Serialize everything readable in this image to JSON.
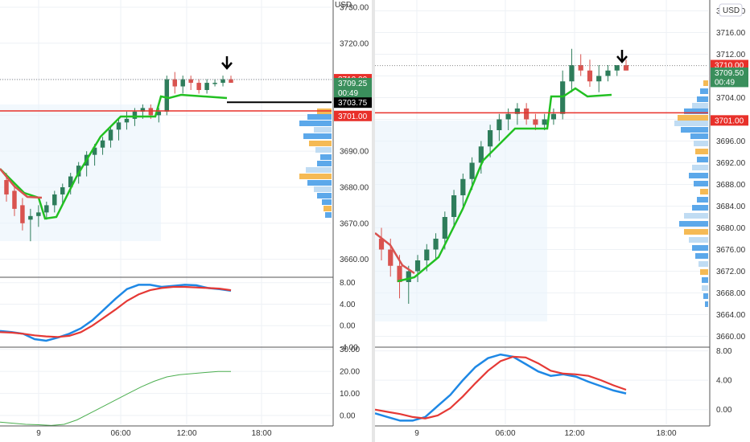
{
  "currency": "USD",
  "colors": {
    "up": "#2e7d5b",
    "down": "#d9534f",
    "trend": "#22c022",
    "mac_fast": "#1e88e5",
    "mac_slow": "#e53935",
    "osc": "#4caf50",
    "vp_blue": "#4a9ee8",
    "vp_lightblue": "#b9d8f2",
    "vp_orange": "#f4b342",
    "vp_cream": "#f7dfa0",
    "grid": "#eef1f5",
    "hl_red": "#e8302a",
    "hl_black": "#000000"
  },
  "chart_data": [
    {
      "panel": "left",
      "type": "candlestick",
      "x_labels": [
        "9",
        "06:00",
        "12:00",
        "18:00"
      ],
      "y_ticks": [
        "3730.00",
        "3720.00",
        "3710.00",
        "3700.00",
        "3690.00",
        "3680.00",
        "3670.00",
        "3660.00"
      ],
      "ylim": [
        3655,
        3732
      ],
      "price_badges": [
        {
          "text": "3710.00",
          "price": 3710.0,
          "style": "red"
        },
        {
          "text": "3709.25",
          "price": 3708.9,
          "style": "green"
        },
        {
          "text": "00:49",
          "price": 3706.2,
          "style": "green"
        },
        {
          "text": "3703.75",
          "price": 3703.5,
          "style": "black"
        },
        {
          "text": "3701.00",
          "price": 3699.8,
          "style": "red"
        }
      ],
      "candles": [
        [
          3682,
          3684,
          3676,
          3678
        ],
        [
          3679,
          3681,
          3672,
          3674
        ],
        [
          3675,
          3677,
          3668,
          3670
        ],
        [
          3671,
          3674,
          3665,
          3672
        ],
        [
          3672,
          3675,
          3669,
          3673
        ],
        [
          3673,
          3676,
          3671,
          3675
        ],
        [
          3675,
          3679,
          3673,
          3678
        ],
        [
          3678,
          3681,
          3675,
          3680
        ],
        [
          3680,
          3684,
          3678,
          3683
        ],
        [
          3683,
          3687,
          3681,
          3686
        ],
        [
          3686,
          3690,
          3683,
          3689
        ],
        [
          3689,
          3692,
          3686,
          3691
        ],
        [
          3691,
          3694,
          3689,
          3693
        ],
        [
          3693,
          3697,
          3691,
          3696
        ],
        [
          3696,
          3699,
          3693,
          3698
        ],
        [
          3698,
          3701,
          3696,
          3699
        ],
        [
          3699,
          3702,
          3697,
          3701
        ],
        [
          3701,
          3703,
          3699,
          3702
        ],
        [
          3702,
          3703,
          3699,
          3700
        ],
        [
          3700,
          3702,
          3698,
          3701
        ],
        [
          3701,
          3711,
          3700,
          3710
        ],
        [
          3710,
          3712,
          3706,
          3708
        ],
        [
          3708,
          3711,
          3706,
          3710
        ],
        [
          3710,
          3711,
          3707,
          3709
        ],
        [
          3709,
          3710,
          3706,
          3707
        ],
        [
          3707,
          3710,
          3706,
          3709
        ],
        [
          3709,
          3710,
          3708,
          3709
        ],
        [
          3709,
          3711,
          3708,
          3710
        ],
        [
          3710,
          3711,
          3709,
          3709
        ]
      ],
      "macd": {
        "ylim": [
          -4,
          9
        ],
        "y_ticks": [
          "8.00",
          "4.00",
          "0.00",
          "-4.00"
        ],
        "fast": [
          -1,
          -1.2,
          -1.5,
          -2.5,
          -2.8,
          -2.2,
          -1.5,
          -0.5,
          1,
          3,
          5,
          6.8,
          7.6,
          7.6,
          7.2,
          7.4,
          7.6,
          7.5,
          7.0,
          6.8,
          6.5
        ],
        "slow": [
          -1.2,
          -1.3,
          -1.5,
          -1.8,
          -2.0,
          -2.1,
          -1.9,
          -1.2,
          0,
          1.5,
          3,
          4.6,
          5.8,
          6.6,
          7.0,
          7.2,
          7.2,
          7.1,
          7.0,
          6.9,
          6.6
        ]
      },
      "oscillator": {
        "ylim": [
          -4,
          31
        ],
        "y_ticks": [
          "30.00",
          "20.00",
          "10.00",
          "0.00"
        ],
        "values": [
          -3,
          -3.5,
          -4,
          -4.2,
          -4.5,
          -4,
          -2,
          1,
          4,
          7,
          10,
          13,
          15.5,
          17.5,
          18.5,
          19,
          19.5,
          20,
          20
        ]
      }
    },
    {
      "panel": "right",
      "type": "candlestick",
      "x_labels": [
        "9",
        "06:00",
        "12:00",
        "18:00"
      ],
      "y_ticks": [
        "3720.00",
        "3716.00",
        "3712.00",
        "3708.00",
        "3704.00",
        "3700.00",
        "3696.00",
        "3692.00",
        "3688.00",
        "3684.00",
        "3680.00",
        "3676.00",
        "3672.00",
        "3668.00",
        "3664.00",
        "3660.00"
      ],
      "ylim": [
        3658,
        3722
      ],
      "price_badges": [
        {
          "text": "3710.00",
          "price": 3710.0,
          "style": "red"
        },
        {
          "text": "3709.50",
          "price": 3708.6,
          "style": "green"
        },
        {
          "text": "00:49",
          "price": 3706.9,
          "style": "green"
        },
        {
          "text": "3701.00",
          "price": 3699.8,
          "style": "red"
        }
      ],
      "candles": [
        [
          3678,
          3680,
          3674,
          3676
        ],
        [
          3676,
          3678,
          3671,
          3673
        ],
        [
          3673,
          3675,
          3667,
          3670
        ],
        [
          3670,
          3673,
          3666,
          3672
        ],
        [
          3672,
          3675,
          3670,
          3674
        ],
        [
          3674,
          3677,
          3672,
          3676
        ],
        [
          3676,
          3679,
          3674,
          3678
        ],
        [
          3678,
          3683,
          3676,
          3682
        ],
        [
          3682,
          3687,
          3680,
          3686
        ],
        [
          3686,
          3690,
          3684,
          3689
        ],
        [
          3689,
          3693,
          3687,
          3692
        ],
        [
          3692,
          3696,
          3690,
          3695
        ],
        [
          3695,
          3699,
          3693,
          3698
        ],
        [
          3698,
          3701,
          3696,
          3700
        ],
        [
          3700,
          3702,
          3698,
          3701
        ],
        [
          3701,
          3703,
          3699,
          3702
        ],
        [
          3702,
          3703,
          3699,
          3700
        ],
        [
          3700,
          3701,
          3698,
          3699
        ],
        [
          3699,
          3701,
          3698,
          3700
        ],
        [
          3700,
          3702,
          3699,
          3701
        ],
        [
          3701,
          3709,
          3700,
          3707
        ],
        [
          3707,
          3713,
          3705,
          3710
        ],
        [
          3710,
          3712,
          3708,
          3709
        ],
        [
          3709,
          3711,
          3706,
          3707
        ],
        [
          3707,
          3710,
          3705,
          3708
        ],
        [
          3708,
          3710,
          3707,
          3709
        ],
        [
          3709,
          3710,
          3708,
          3710
        ],
        [
          3710,
          3711,
          3709,
          3709
        ]
      ],
      "macd": {
        "ylim": [
          -2,
          8.5
        ],
        "y_ticks": [
          "8.00",
          "4.00",
          "0.00"
        ],
        "fast": [
          -0.5,
          -1,
          -1.5,
          -1.5,
          -1,
          0.5,
          2,
          4,
          5.8,
          7,
          7.5,
          7.2,
          6.2,
          5.2,
          4.6,
          4.8,
          4.5,
          3.8,
          3.2,
          2.6,
          2.2
        ],
        "slow": [
          0,
          -0.3,
          -0.6,
          -1,
          -1.2,
          -0.8,
          0.2,
          1.8,
          3.6,
          5.3,
          6.6,
          7.2,
          7.1,
          6.3,
          5.3,
          4.9,
          4.8,
          4.6,
          4.0,
          3.3,
          2.7
        ]
      }
    }
  ]
}
